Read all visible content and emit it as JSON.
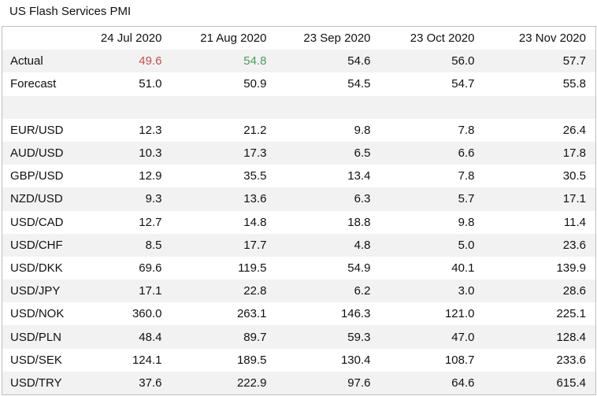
{
  "title": "US Flash Services PMI",
  "table": {
    "columns": [
      "24 Jul 2020",
      "21 Aug 2020",
      "23 Sep 2020",
      "23 Oct 2020",
      "23 Nov 2020"
    ],
    "indicator_rows": [
      {
        "label": "Actual",
        "values": [
          "49.6",
          "54.8",
          "54.6",
          "56.0",
          "57.7"
        ]
      },
      {
        "label": "Forecast",
        "values": [
          "51.0",
          "50.9",
          "54.5",
          "54.7",
          "55.8"
        ]
      }
    ],
    "currency_rows": [
      {
        "label": "EUR/USD",
        "values": [
          "12.3",
          "21.2",
          "9.8",
          "7.8",
          "26.4"
        ]
      },
      {
        "label": "AUD/USD",
        "values": [
          "10.3",
          "17.3",
          "6.5",
          "6.6",
          "17.8"
        ]
      },
      {
        "label": "GBP/USD",
        "values": [
          "12.9",
          "35.5",
          "13.4",
          "7.8",
          "30.5"
        ]
      },
      {
        "label": "NZD/USD",
        "values": [
          "9.3",
          "13.6",
          "6.3",
          "5.7",
          "17.1"
        ]
      },
      {
        "label": "USD/CAD",
        "values": [
          "12.7",
          "14.8",
          "18.8",
          "9.8",
          "11.4"
        ]
      },
      {
        "label": "USD/CHF",
        "values": [
          "8.5",
          "17.7",
          "4.8",
          "5.0",
          "23.6"
        ]
      },
      {
        "label": "USD/DKK",
        "values": [
          "69.6",
          "119.5",
          "54.9",
          "40.1",
          "139.9"
        ]
      },
      {
        "label": "USD/JPY",
        "values": [
          "17.1",
          "22.8",
          "6.2",
          "3.0",
          "28.6"
        ]
      },
      {
        "label": "USD/NOK",
        "values": [
          "360.0",
          "263.1",
          "146.3",
          "121.0",
          "225.1"
        ]
      },
      {
        "label": "USD/PLN",
        "values": [
          "48.4",
          "89.7",
          "59.3",
          "47.0",
          "128.4"
        ]
      },
      {
        "label": "USD/SEK",
        "values": [
          "124.1",
          "189.5",
          "130.4",
          "108.7",
          "233.6"
        ]
      },
      {
        "label": "USD/TRY",
        "values": [
          "37.6",
          "222.9",
          "97.6",
          "64.6",
          "615.4"
        ]
      }
    ]
  }
}
